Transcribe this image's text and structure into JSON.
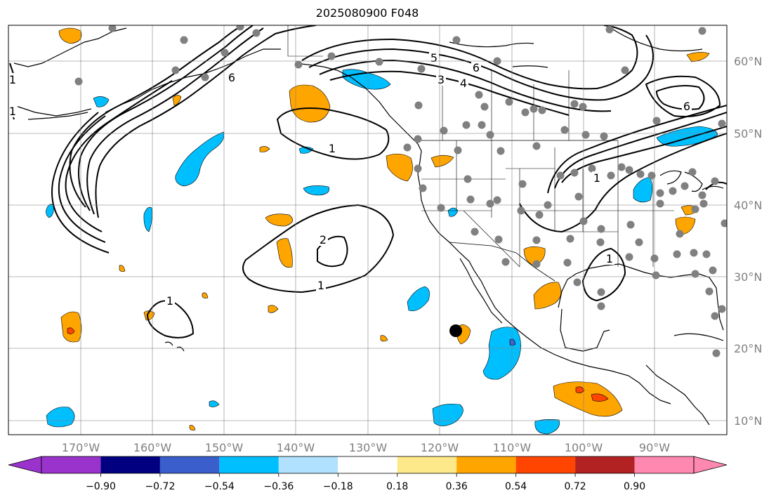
{
  "title": "2025080900 F048",
  "longitude_labels": [
    "170°W",
    "160°W",
    "150°W",
    "140°W",
    "130°W",
    "120°W",
    "110°W",
    "100°W",
    "90°W"
  ],
  "latitude_labels": [
    "10°N",
    "20°N",
    "30°N",
    "40°N",
    "50°N",
    "60°N"
  ],
  "colorbar": {
    "ticks": [
      "−0.90",
      "−0.72",
      "−0.54",
      "−0.36",
      "−0.18",
      "0.18",
      "0.36",
      "0.54",
      "0.72",
      "0.90"
    ],
    "colors": [
      "#9933cc",
      "#000080",
      "#3a5fcd",
      "#00bfff",
      "#b0e2ff",
      "#ffffff",
      "#fee98a",
      "#ffa500",
      "#ff4500",
      "#b22222",
      "#ff88b0"
    ]
  },
  "contour_labels": [
    "1",
    "1",
    "1",
    "1",
    "1",
    "1",
    "1",
    "2",
    "3",
    "4",
    "5",
    "6",
    "6",
    "6"
  ],
  "marker": {
    "color": "#000000"
  },
  "stations_color": "#808080"
}
